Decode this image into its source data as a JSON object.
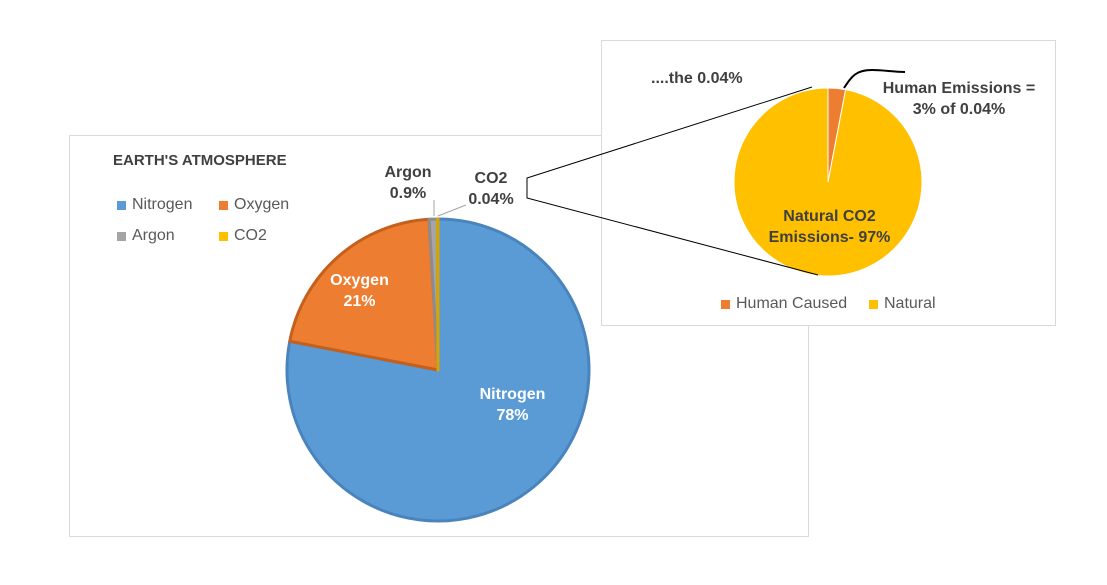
{
  "chart_data": [
    {
      "type": "pie",
      "title": "EARTH'S ATMOSPHERE",
      "legend_position": "top-left",
      "categories": [
        "Nitrogen",
        "Oxygen",
        "Argon",
        "CO2"
      ],
      "values": [
        78,
        21,
        0.9,
        0.04
      ],
      "colors": [
        "#5b9bd5",
        "#ed7d31",
        "#a5a5a5",
        "#ffc000"
      ],
      "data_labels": [
        {
          "name": "Nitrogen",
          "value": "78%"
        },
        {
          "name": "Oxygen",
          "value": "21%"
        },
        {
          "name": "Argon",
          "value": "0.9%"
        },
        {
          "name": "CO2",
          "value": "0.04%"
        }
      ]
    },
    {
      "type": "pie",
      "annotation": "....the 0.04%",
      "legend_position": "bottom",
      "legend": [
        "Human Caused",
        "Natural"
      ],
      "values": [
        3,
        97
      ],
      "colors": [
        "#ed7d31",
        "#ffc000"
      ],
      "data_labels": [
        {
          "line1": "Human Emissions =",
          "line2": "3% of 0.04%"
        },
        {
          "line1": "Natural CO2",
          "line2": "Emissions- 97%"
        }
      ]
    }
  ]
}
